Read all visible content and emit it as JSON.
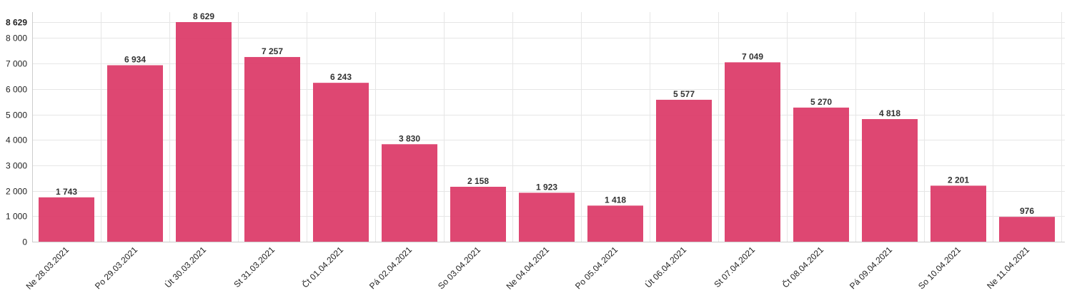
{
  "chart_data": {
    "type": "bar",
    "categories": [
      "Ne 28.03.2021",
      "Po 29.03.2021",
      "Út 30.03.2021",
      "St 31.03.2021",
      "Čt 01.04.2021",
      "Pá 02.04.2021",
      "So 03.04.2021",
      "Ne 04.04.2021",
      "Po 05.04.2021",
      "Út 06.04.2021",
      "St 07.04.2021",
      "Čt 08.04.2021",
      "Pá 09.04.2021",
      "So 10.04.2021",
      "Ne 11.04.2021"
    ],
    "values": [
      1743,
      6934,
      8629,
      7257,
      6243,
      3830,
      2158,
      1923,
      1418,
      5577,
      7049,
      5270,
      4818,
      2201,
      976
    ],
    "value_labels": [
      "1 743",
      "6 934",
      "8 629",
      "7 257",
      "6 243",
      "3 830",
      "2 158",
      "1 923",
      "1 418",
      "5 577",
      "7 049",
      "5 270",
      "4 818",
      "2 201",
      "976"
    ],
    "ylim": [
      0,
      8629
    ],
    "yticks": [
      0,
      1000,
      2000,
      3000,
      4000,
      5000,
      6000,
      7000,
      8000,
      8629
    ],
    "ytick_labels": [
      "0",
      "1 000",
      "2 000",
      "3 000",
      "4 000",
      "5 000",
      "6 000",
      "7 000",
      "8 000",
      "8 629"
    ],
    "grid": true,
    "bar_color": "#dc3d6a"
  }
}
